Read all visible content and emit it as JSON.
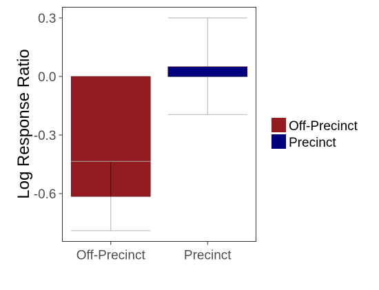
{
  "chart_data": {
    "type": "bar",
    "ylabel": "Log Response Ratio",
    "xlabel": "",
    "categories": [
      "Off-Precinct",
      "Precinct"
    ],
    "ylim": [
      -0.82,
      0.35
    ],
    "yticks": [
      0.3,
      0.0,
      -0.3,
      -0.6
    ],
    "ytick_labels": [
      "0.3",
      "0.0",
      "-0.3",
      "-0.6"
    ],
    "grid": false,
    "legend_position": "right",
    "series": [
      {
        "name": "Off-Precinct",
        "color": "#931c20",
        "bar_top": 0.0,
        "bar_bottom": -0.615,
        "estimate": -0.435,
        "ci_low": -0.79,
        "ci_high": -0.435
      },
      {
        "name": "Precinct",
        "color": "#00007f",
        "bar_top": 0.05,
        "bar_bottom": 0.0,
        "estimate": 0.0,
        "ci_low": -0.195,
        "ci_high": 0.3
      }
    ]
  }
}
